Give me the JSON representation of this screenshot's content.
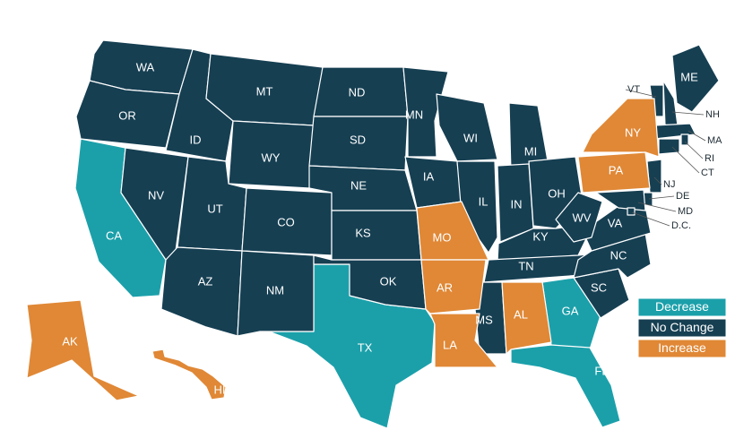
{
  "groups": [
    {
      "label": "Decrease",
      "color": "#1ba0aa",
      "states": [
        "CA",
        "TX",
        "GA",
        "FL"
      ]
    },
    {
      "label": "No Change",
      "color": "#163f52",
      "states": [
        "WA",
        "OR",
        "NV",
        "ID",
        "MT",
        "WY",
        "UT",
        "AZ",
        "CO",
        "NM",
        "ND",
        "SD",
        "NE",
        "KS",
        "OK",
        "MN",
        "IA",
        "WI",
        "IL",
        "MI",
        "IN",
        "OH",
        "KY",
        "TN",
        "MS",
        "SC",
        "NC",
        "VA",
        "WV",
        "ME",
        "VT",
        "NH",
        "MA",
        "RI",
        "CT",
        "NJ",
        "DE",
        "MD",
        "D.C."
      ]
    },
    {
      "label": "Increase",
      "color": "#e08836",
      "states": [
        "NY",
        "PA",
        "MO",
        "AR",
        "LA",
        "AL",
        "AK",
        "HI"
      ]
    }
  ]
}
